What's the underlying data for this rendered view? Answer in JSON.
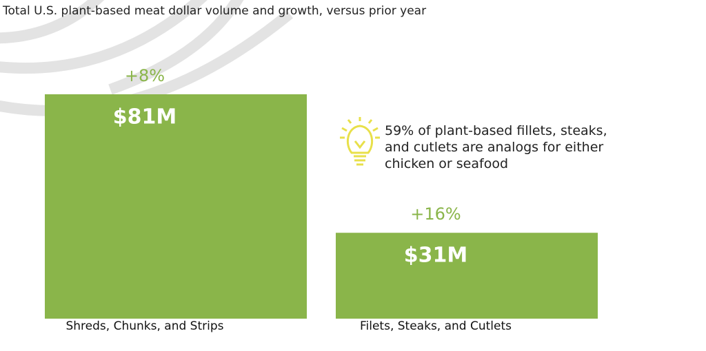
{
  "chart_data": {
    "type": "bar",
    "title": "Total U.S. plant-based meat dollar volume and growth, versus prior year",
    "categories": [
      "Shreds, Chunks, and Strips",
      "Filets, Steaks, and Cutlets"
    ],
    "values": [
      81,
      31
    ],
    "value_labels": [
      "$81M",
      "$31M"
    ],
    "growth_labels": [
      "+8%",
      "+16%"
    ],
    "color": "#8ab54a",
    "annotation": "59% of plant-based fillets, steaks, and cutlets are analogs for either chicken or seafood"
  }
}
